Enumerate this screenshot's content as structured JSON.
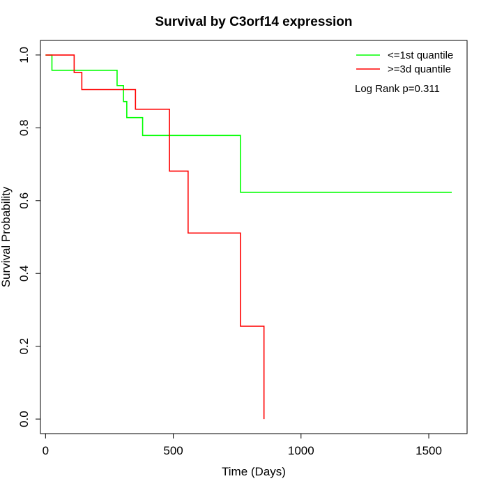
{
  "chart_data": {
    "type": "line",
    "title": "Survival by C3orf14 expression",
    "xlabel": "Time (Days)",
    "ylabel": "Survival Probability",
    "xlim": [
      -20,
      1650
    ],
    "ylim": [
      -0.04,
      1.04
    ],
    "x_ticks": [
      0,
      500,
      1000,
      1500
    ],
    "y_ticks": [
      0.0,
      0.2,
      0.4,
      0.6,
      0.8,
      1.0
    ],
    "y_tick_labels": [
      "0.0",
      "0.2",
      "0.4",
      "0.6",
      "0.8",
      "1.0"
    ],
    "grid": false,
    "legend_position": "top-right",
    "annotation": "Log Rank p=0.311",
    "series": [
      {
        "name": "<=1st quantile",
        "color": "#00ff00",
        "step": true,
        "x": [
          0,
          25,
          280,
          305,
          318,
          380,
          763,
          1590
        ],
        "y": [
          1.0,
          0.958,
          0.916,
          0.872,
          0.828,
          0.779,
          0.623,
          0.623
        ]
      },
      {
        "name": ">=3d quantile",
        "color": "#ff0000",
        "step": true,
        "x": [
          0,
          112,
          142,
          352,
          485,
          558,
          763,
          855,
          855
        ],
        "y": [
          1.0,
          0.952,
          0.905,
          0.851,
          0.681,
          0.511,
          0.255,
          0.255,
          0.0
        ]
      }
    ]
  }
}
